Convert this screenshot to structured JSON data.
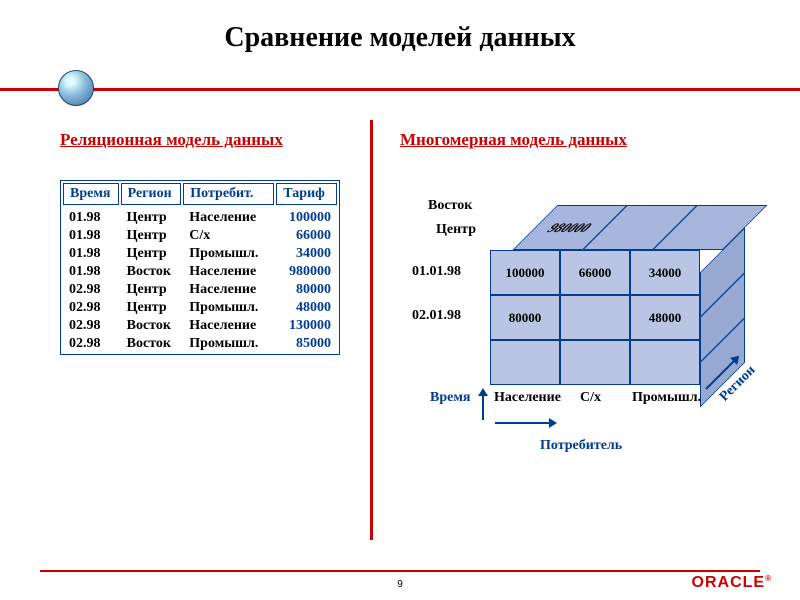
{
  "title": "Сравнение моделей данных",
  "slide_number": "9",
  "brand": "ORACLE",
  "colors": {
    "accent_red": "#c00",
    "accent_blue": "#003c8f",
    "cube_face": "#b9c5e3",
    "cube_top": "#a7b6dc",
    "cube_side": "#97a8d2",
    "background": "#ffffff"
  },
  "left_panel": {
    "title": "Реляционная модель данных",
    "columns": [
      "Время",
      "Регион",
      "Потребит.",
      "Тариф"
    ],
    "rows": [
      [
        "01.98",
        "Центр",
        "Население",
        "100000"
      ],
      [
        "01.98",
        "Центр",
        "С/х",
        "66000"
      ],
      [
        "01.98",
        "Центр",
        "Промышл.",
        "34000"
      ],
      [
        "01.98",
        "Восток",
        "Население",
        "980000"
      ],
      [
        "02.98",
        "Центр",
        "Население",
        "80000"
      ],
      [
        "02.98",
        "Центр",
        "Промышл.",
        "48000"
      ],
      [
        "02.98",
        "Восток",
        "Население",
        "130000"
      ],
      [
        "02.98",
        "Восток",
        "Промышл.",
        "85000"
      ]
    ]
  },
  "right_panel": {
    "title": "Многомерная модель данных",
    "region_labels": [
      "Восток",
      "Центр"
    ],
    "time_labels": [
      "01.01.98",
      "02.01.98"
    ],
    "consumer_labels": [
      "Население",
      "С/х",
      "Промышл."
    ],
    "axis_time": "Время",
    "axis_consumer": "Потребитель",
    "axis_region": "Регион",
    "top_row": [
      "980000",
      "",
      ""
    ],
    "front_grid": [
      [
        "100000",
        "66000",
        "34000"
      ],
      [
        "80000",
        "",
        "48000"
      ],
      [
        "",
        "",
        ""
      ]
    ]
  }
}
